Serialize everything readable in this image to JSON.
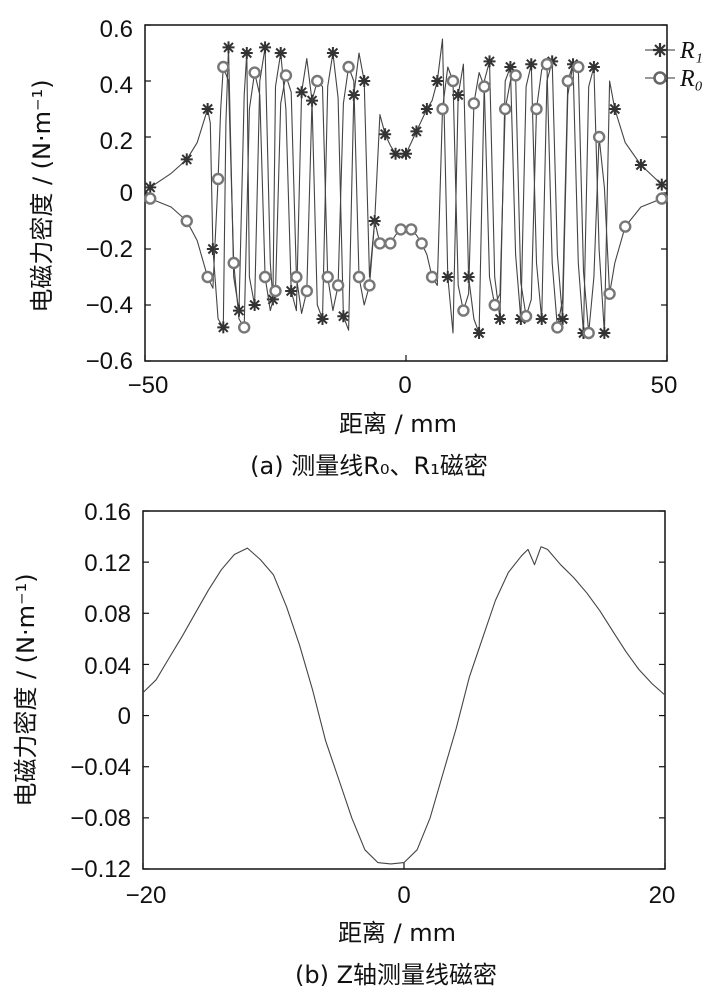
{
  "chart_data": [
    {
      "type": "line",
      "panel": "a",
      "caption": "(a)  测量线R₀、R₁磁密",
      "xlabel": "距离 / mm",
      "ylabel": "电磁力密度 / (N·m⁻¹)",
      "xlim": [
        -50,
        50
      ],
      "ylim": [
        -0.6,
        0.6
      ],
      "xticks": [
        "−50",
        "0",
        "50"
      ],
      "xtick_values": [
        -50,
        0,
        50
      ],
      "yticks": [
        "0.6",
        "0.4",
        "0.2",
        "0",
        "−0.2",
        "−0.4",
        "−0.6"
      ],
      "ytick_values": [
        0.6,
        0.4,
        0.2,
        0,
        -0.2,
        -0.4,
        -0.6
      ],
      "legend_position": "top-right",
      "series": [
        {
          "name": "R₁",
          "marker": "asterisk",
          "x": [
            -49,
            -45,
            -42,
            -40,
            -38,
            -37.5,
            -37,
            -36,
            -35,
            -34.5,
            -34,
            -33,
            -32,
            -31,
            -30.5,
            -30,
            -29,
            -28,
            -27,
            -26,
            -25.5,
            -25,
            -24,
            -23,
            -22,
            -21,
            -20,
            -19,
            -18,
            -17,
            -16,
            -15,
            -14,
            -13,
            -12,
            -11,
            -10,
            -9,
            -8,
            -7,
            -6,
            -5,
            -4,
            -3,
            -2,
            -1,
            0,
            1,
            2,
            3,
            4,
            5,
            6,
            7,
            8,
            9,
            10,
            11,
            12,
            13,
            14,
            15,
            16,
            17,
            18,
            19,
            20,
            21,
            22,
            23,
            24,
            25,
            26,
            27,
            28,
            29,
            30,
            31,
            32,
            33,
            34,
            35,
            36,
            37,
            38,
            39,
            40,
            42,
            45,
            49
          ],
          "y": [
            0.02,
            0.07,
            0.12,
            0.18,
            0.3,
            0.25,
            -0.2,
            -0.45,
            -0.48,
            0.25,
            0.52,
            -0.3,
            -0.42,
            0.35,
            0.5,
            -0.3,
            -0.4,
            0.4,
            0.52,
            -0.25,
            -0.38,
            0.38,
            0.5,
            0.3,
            -0.35,
            -0.42,
            0.36,
            0.48,
            0.33,
            -0.4,
            -0.45,
            0.38,
            0.5,
            0.34,
            -0.44,
            -0.49,
            0.35,
            0.5,
            0.4,
            -0.3,
            -0.1,
            0.28,
            0.21,
            0.17,
            0.14,
            0.13,
            0.14,
            0.18,
            0.22,
            0.26,
            0.3,
            0.33,
            0.4,
            0.55,
            -0.3,
            -0.5,
            0.35,
            0.46,
            -0.3,
            -0.45,
            -0.5,
            0.4,
            0.47,
            -0.3,
            -0.45,
            0.4,
            0.45,
            -0.22,
            -0.45,
            0.38,
            0.46,
            -0.25,
            -0.45,
            0.4,
            0.47,
            -0.22,
            -0.45,
            0.35,
            0.46,
            -0.25,
            -0.5,
            0.38,
            0.45,
            -0.2,
            -0.5,
            0.4,
            0.3,
            0.18,
            0.1,
            0.03
          ]
        },
        {
          "name": "R₀",
          "marker": "circle",
          "x": [
            -49,
            -45,
            -42,
            -40,
            -38,
            -37,
            -36,
            -35.5,
            -35,
            -34,
            -33,
            -32,
            -31,
            -30,
            -29,
            -28,
            -27,
            -26,
            -25,
            -24,
            -23,
            -22,
            -21,
            -20,
            -19,
            -18,
            -17,
            -16,
            -15,
            -14,
            -13,
            -12,
            -11,
            -10,
            -9,
            -8,
            -7,
            -6,
            -5,
            -4,
            -3,
            -2,
            -1,
            0,
            1,
            2,
            3,
            4,
            5,
            6,
            7,
            8,
            9,
            10,
            11,
            12,
            13,
            14,
            15,
            16,
            17,
            18,
            19,
            20,
            21,
            22,
            23,
            24,
            25,
            26,
            27,
            28,
            29,
            30,
            31,
            32,
            33,
            34,
            35,
            36,
            37,
            38,
            39,
            40,
            42,
            45,
            49
          ],
          "y": [
            -0.02,
            -0.05,
            -0.1,
            -0.17,
            -0.3,
            -0.34,
            0.05,
            0.3,
            0.45,
            0.4,
            -0.25,
            -0.45,
            -0.48,
            0.3,
            0.43,
            0.35,
            -0.3,
            -0.42,
            -0.35,
            0.32,
            0.42,
            0.36,
            -0.3,
            -0.43,
            -0.35,
            0.33,
            0.4,
            0.38,
            -0.3,
            -0.42,
            -0.33,
            0.32,
            0.45,
            0.4,
            -0.3,
            -0.4,
            -0.33,
            -0.1,
            -0.18,
            -0.19,
            -0.18,
            -0.15,
            -0.13,
            -0.12,
            -0.13,
            -0.15,
            -0.18,
            -0.22,
            -0.3,
            -0.33,
            0.3,
            0.45,
            0.4,
            -0.33,
            -0.42,
            -0.36,
            0.32,
            0.43,
            0.38,
            -0.3,
            -0.4,
            -0.36,
            0.3,
            0.4,
            0.42,
            -0.32,
            -0.44,
            -0.38,
            0.3,
            0.44,
            0.46,
            -0.25,
            -0.48,
            -0.38,
            0.4,
            0.46,
            0.45,
            -0.28,
            -0.5,
            -0.3,
            0.2,
            0.02,
            -0.36,
            -0.25,
            -0.12,
            -0.05,
            -0.02
          ]
        }
      ]
    },
    {
      "type": "line",
      "panel": "b",
      "caption": "(b)  Z轴测量线磁密",
      "xlabel": "距离 / mm",
      "ylabel": "电磁力密度 / (N·m⁻¹)",
      "xlim": [
        -20,
        20
      ],
      "ylim": [
        -0.12,
        0.16
      ],
      "xticks": [
        "−20",
        "0",
        "20"
      ],
      "xtick_values": [
        -20,
        0,
        20
      ],
      "yticks": [
        "0.16",
        "0.12",
        "0.08",
        "0.04",
        "0",
        "−0.04",
        "−0.08",
        "−0.12"
      ],
      "ytick_values": [
        0.16,
        0.12,
        0.08,
        0.04,
        0,
        -0.04,
        -0.08,
        -0.12
      ],
      "series": [
        {
          "x": [
            -20,
            -19,
            -18,
            -17,
            -16,
            -15,
            -14,
            -13,
            -12,
            -11,
            -10,
            -9,
            -8,
            -7,
            -6,
            -5,
            -4,
            -3,
            -2,
            -1,
            0,
            1,
            2,
            3,
            4,
            5,
            6,
            7,
            8,
            9,
            9.5,
            10,
            10.5,
            11,
            12,
            13,
            14,
            15,
            16,
            17,
            18,
            19,
            20
          ],
          "y": [
            0.018,
            0.028,
            0.045,
            0.062,
            0.08,
            0.098,
            0.114,
            0.126,
            0.131,
            0.122,
            0.11,
            0.085,
            0.055,
            0.02,
            -0.02,
            -0.05,
            -0.08,
            -0.105,
            -0.115,
            -0.116,
            -0.115,
            -0.105,
            -0.08,
            -0.045,
            -0.01,
            0.03,
            0.06,
            0.09,
            0.112,
            0.125,
            0.13,
            0.118,
            0.132,
            0.13,
            0.118,
            0.108,
            0.096,
            0.082,
            0.066,
            0.05,
            0.036,
            0.025,
            0.016
          ]
        }
      ]
    }
  ]
}
